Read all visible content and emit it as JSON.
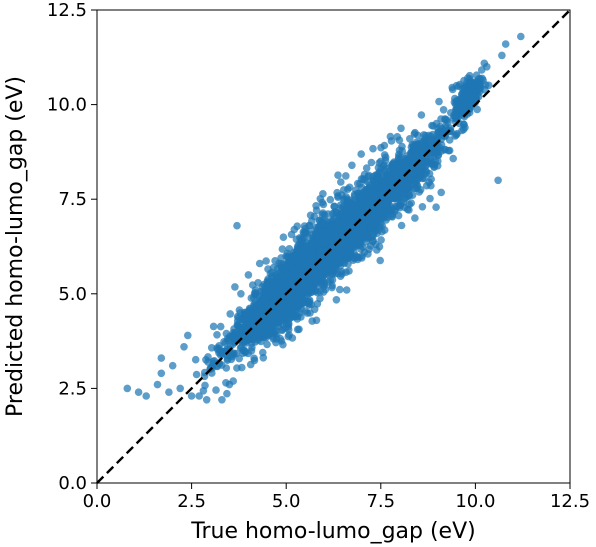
{
  "chart_data": {
    "type": "scatter",
    "xlabel": "True homo-lumo_gap (eV)",
    "ylabel": "Predicted homo-lumo_gap (eV)",
    "xlim": [
      0.0,
      12.5
    ],
    "ylim": [
      0.0,
      12.5
    ],
    "xticks": [
      "0.0",
      "2.5",
      "5.0",
      "7.5",
      "10.0",
      "12.5"
    ],
    "yticks": [
      "0.0",
      "2.5",
      "5.0",
      "7.5",
      "10.0",
      "12.5"
    ],
    "grid": false,
    "reference_line": {
      "x": [
        0.0,
        12.5
      ],
      "y": [
        0.0,
        12.5
      ],
      "style": "dashed",
      "color": "#000000"
    },
    "marker_color": "#1f77b4",
    "points": [
      [
        0.8,
        2.5
      ],
      [
        1.1,
        2.4
      ],
      [
        1.3,
        2.3
      ],
      [
        1.6,
        2.6
      ],
      [
        1.7,
        2.9
      ],
      [
        1.7,
        3.3
      ],
      [
        1.9,
        2.4
      ],
      [
        2.0,
        3.1
      ],
      [
        2.2,
        2.5
      ],
      [
        2.3,
        3.6
      ],
      [
        2.4,
        3.9
      ],
      [
        2.5,
        2.3
      ],
      [
        2.7,
        2.3
      ],
      [
        2.9,
        2.2
      ],
      [
        3.3,
        2.2
      ],
      [
        3.5,
        2.6
      ],
      [
        3.7,
        6.8
      ],
      [
        4.0,
        5.5
      ],
      [
        4.3,
        5.8
      ],
      [
        5.3,
        4.4
      ],
      [
        5.8,
        4.3
      ],
      [
        6.6,
        5.1
      ],
      [
        7.0,
        6.0
      ],
      [
        7.3,
        6.4
      ],
      [
        7.4,
        6.6
      ],
      [
        7.5,
        8.5
      ],
      [
        8.4,
        7.0
      ],
      [
        8.6,
        7.3
      ],
      [
        9.2,
        9.6
      ],
      [
        9.4,
        10.4
      ],
      [
        9.5,
        10.5
      ],
      [
        9.8,
        10.7
      ],
      [
        10.0,
        10.3
      ],
      [
        10.3,
        11.0
      ],
      [
        10.7,
        11.3
      ],
      [
        11.2,
        11.8
      ],
      [
        10.6,
        8.0
      ],
      [
        10.8,
        11.6
      ]
    ],
    "bands": [
      {
        "x_from": 2.3,
        "x_to": 10.5,
        "slope": 0.97,
        "intercept": 0.25,
        "spread": 0.33,
        "count": 2600
      },
      {
        "x_from": 2.0,
        "x_to": 10.2,
        "slope": 0.97,
        "intercept": 0.25,
        "spread": 0.6,
        "count": 900
      },
      {
        "x_from": 3.8,
        "x_to": 6.2,
        "slope": 0.97,
        "intercept": 0.2,
        "spread": 0.45,
        "count": 700
      },
      {
        "x_from": 9.2,
        "x_to": 10.4,
        "slope": 1.0,
        "intercept": 0.4,
        "spread": 0.2,
        "count": 200
      }
    ]
  }
}
